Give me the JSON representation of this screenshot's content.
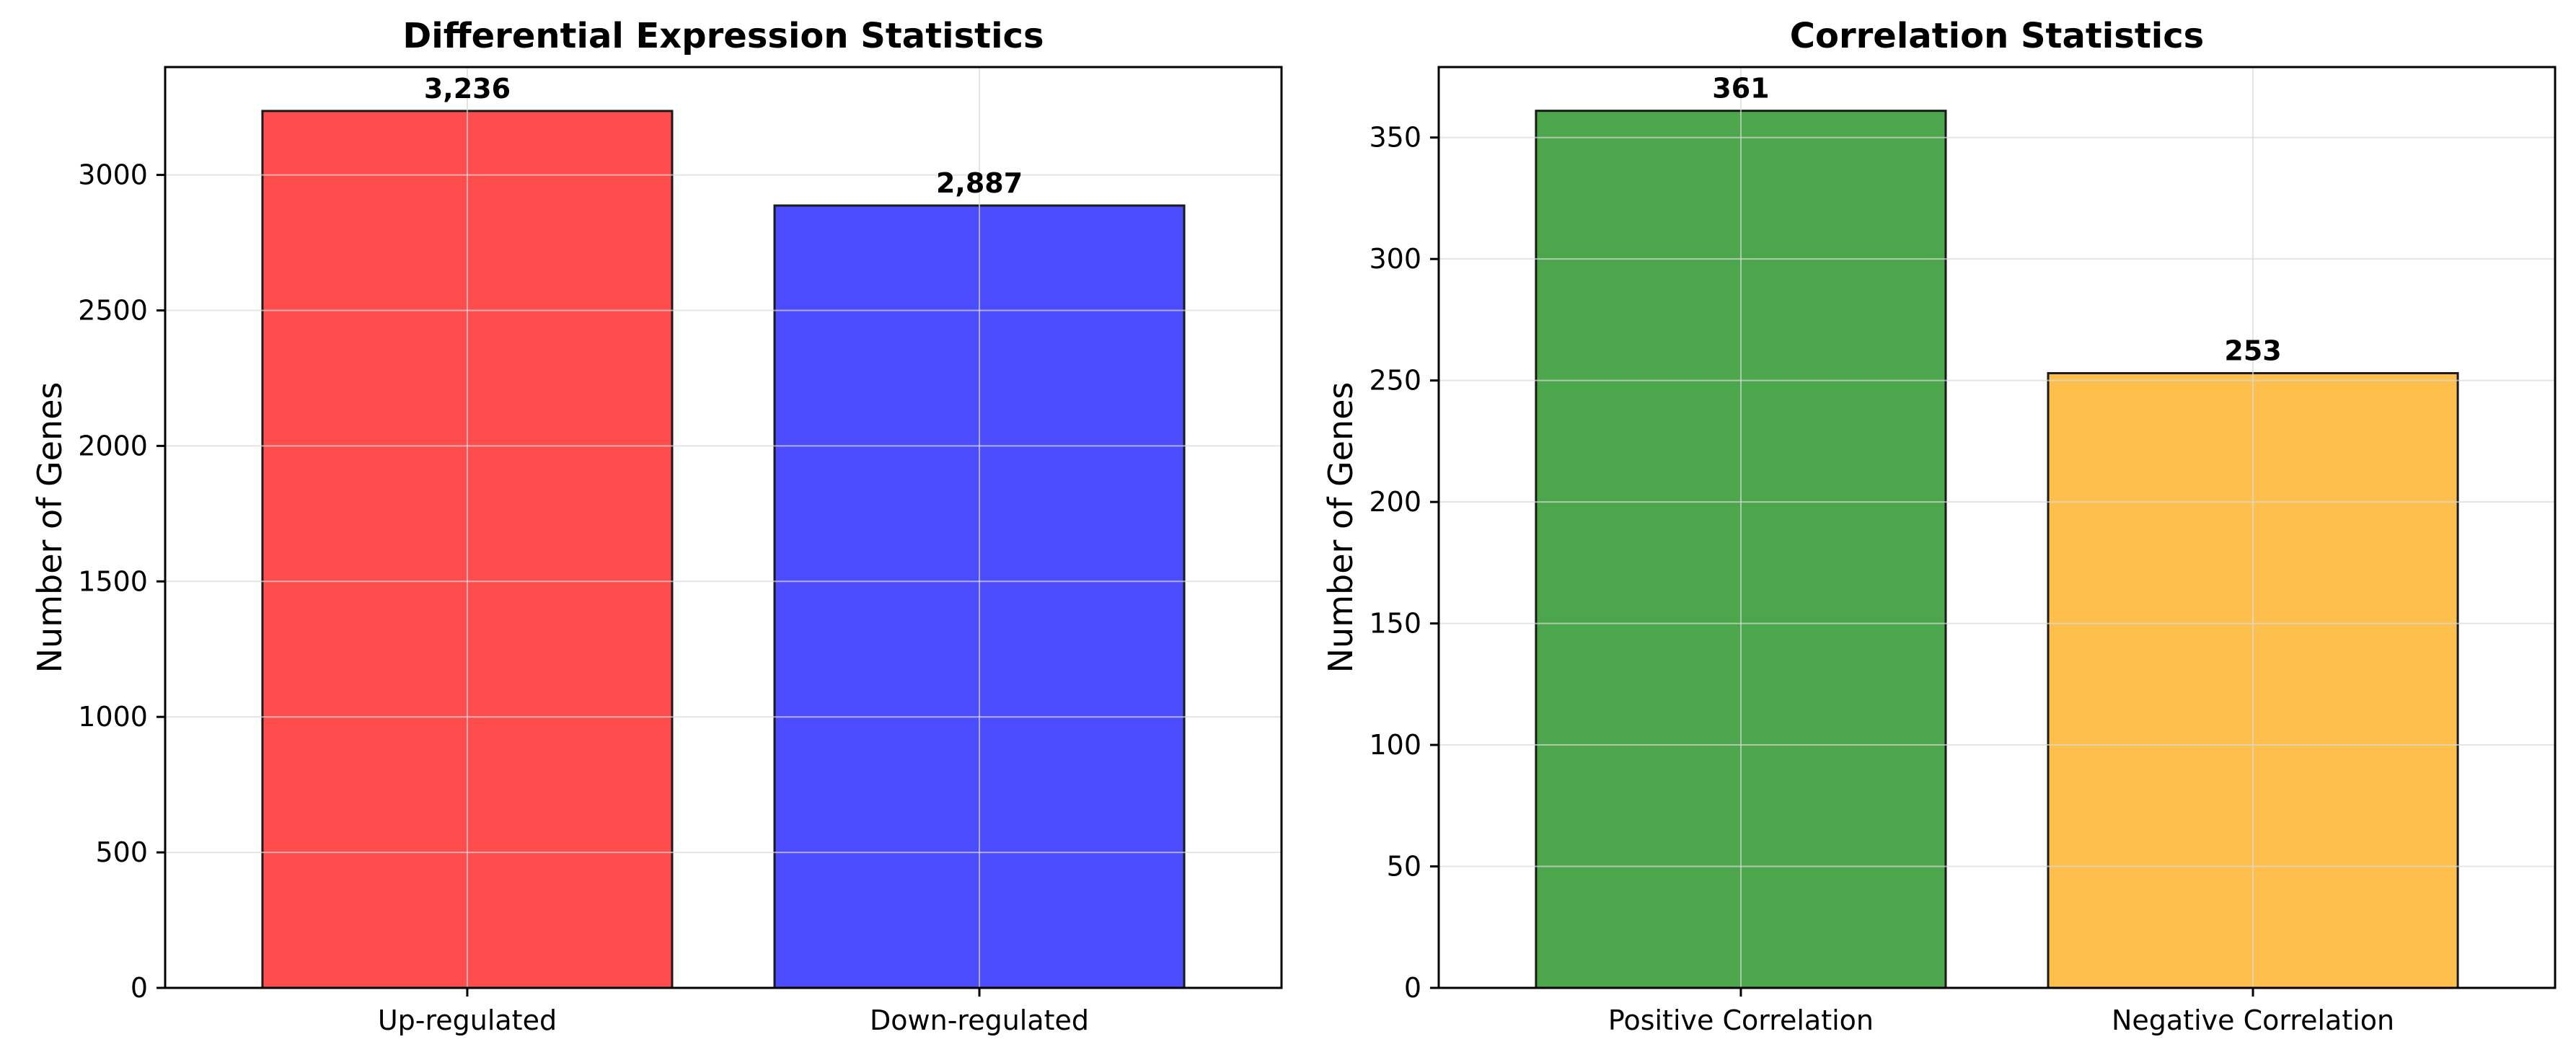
{
  "chart_data": [
    {
      "type": "bar",
      "title": "Differential Expression Statistics",
      "xlabel": "",
      "ylabel": "Number of Genes",
      "categories": [
        "Up-regulated",
        "Down-regulated"
      ],
      "values": [
        3236,
        2887
      ],
      "value_labels": [
        "3,236",
        "2,887"
      ],
      "colors": [
        "#ff4c4c",
        "#4c4cff"
      ],
      "ylim": [
        0,
        3398
      ],
      "yticks": [
        0,
        500,
        1000,
        1500,
        2000,
        2500,
        3000
      ],
      "grid": true,
      "legend": "none"
    },
    {
      "type": "bar",
      "title": "Correlation Statistics",
      "xlabel": "",
      "ylabel": "Number of Genes",
      "categories": [
        "Positive Correlation",
        "Negative Correlation"
      ],
      "values": [
        361,
        253
      ],
      "value_labels": [
        "361",
        "253"
      ],
      "colors": [
        "#4ca64c",
        "#ffbf4c"
      ],
      "ylim": [
        0,
        379
      ],
      "yticks": [
        0,
        50,
        100,
        150,
        200,
        250,
        300,
        350
      ],
      "grid": true,
      "legend": "none"
    }
  ]
}
